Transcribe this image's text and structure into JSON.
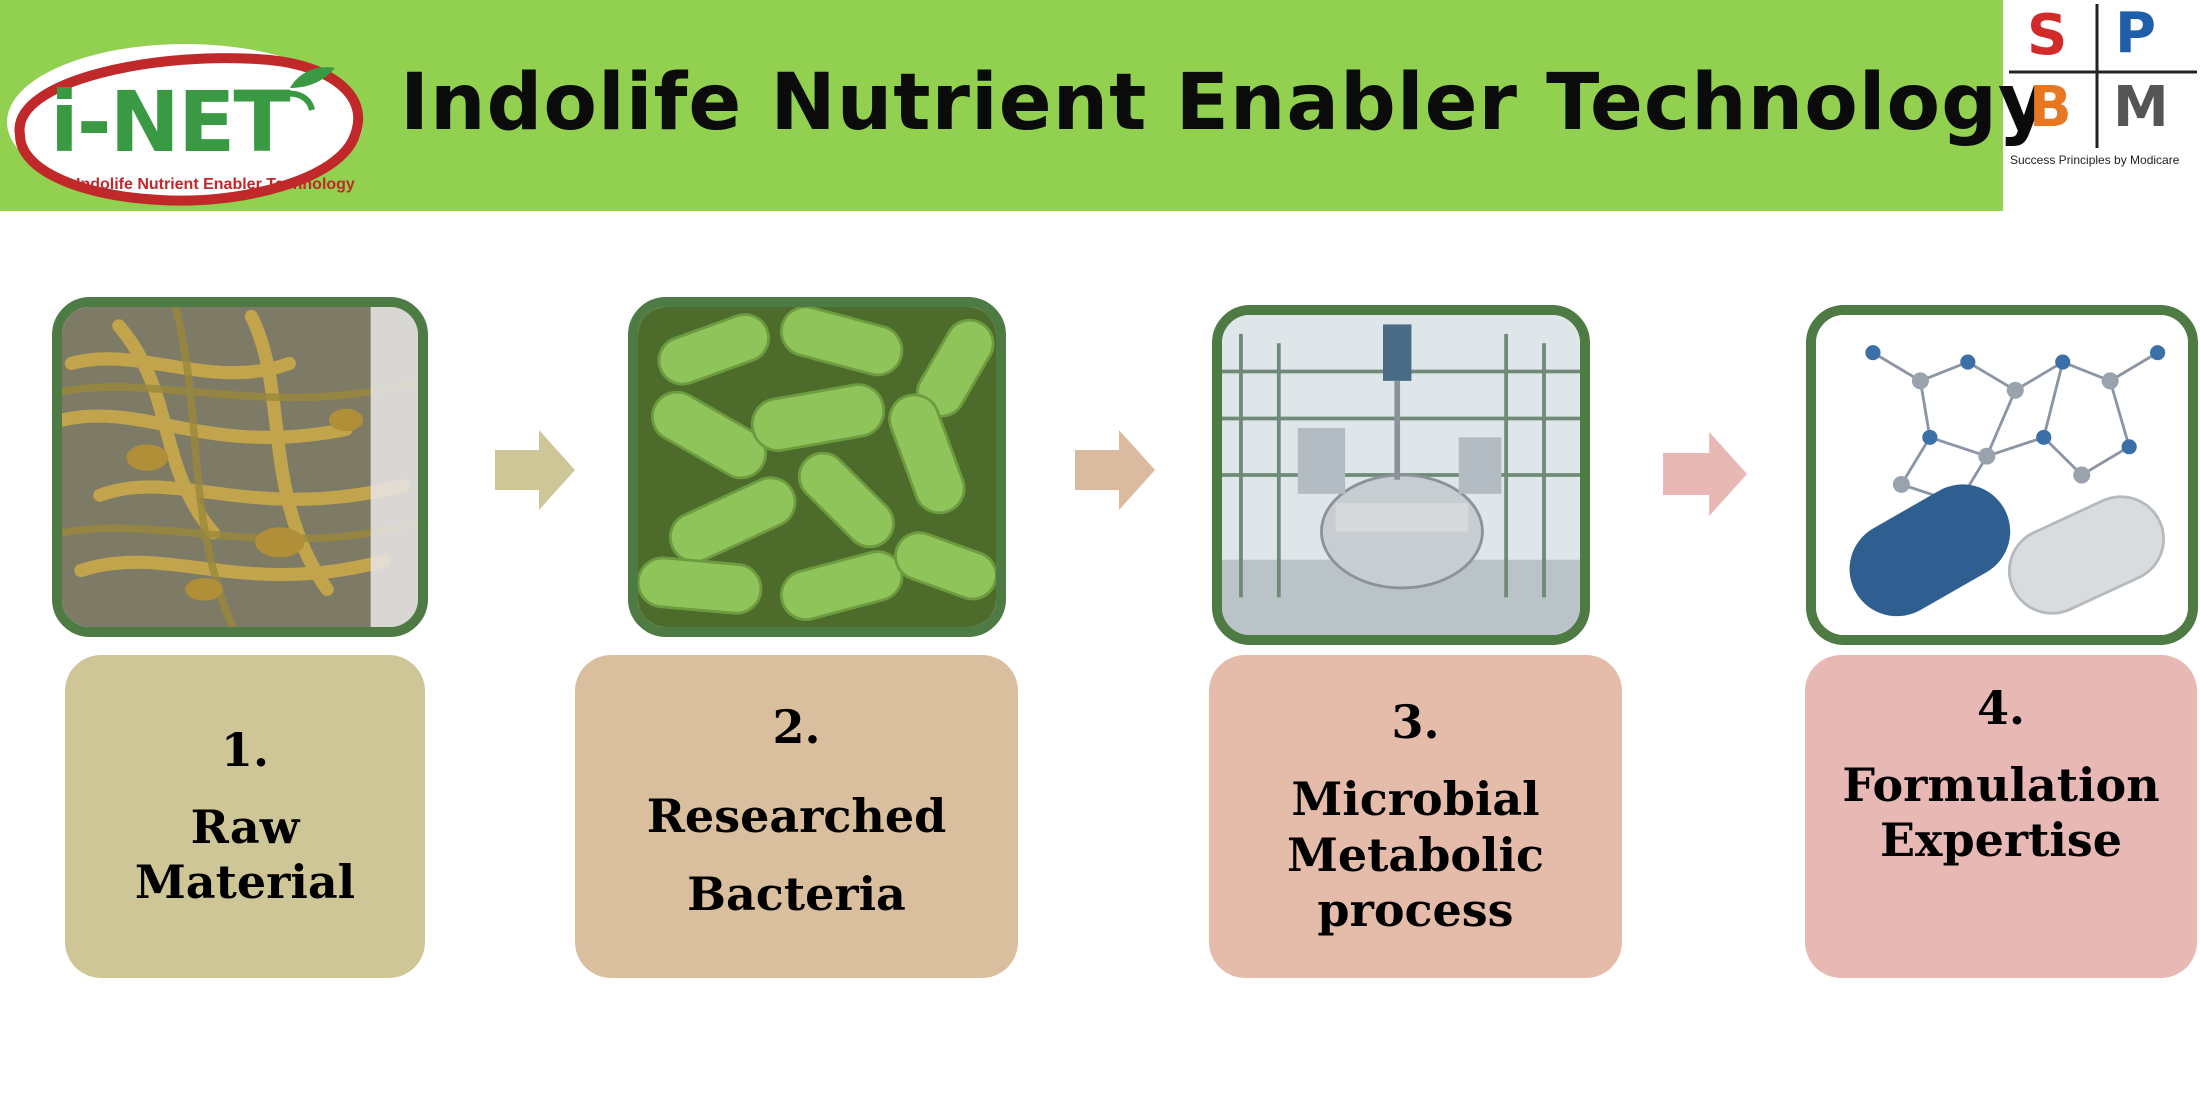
{
  "header": {
    "title": "Indolife Nutrient Enabler Technology",
    "logo_text": "i-NET",
    "logo_subtitle": "Indolife Nutrient Enabler Technology",
    "bg_color": "#92d050"
  },
  "brand": {
    "letters": [
      "S",
      "P",
      "B",
      "M"
    ],
    "tagline": "Success Principles by Modicare"
  },
  "steps": [
    {
      "number": "1.",
      "label": "Raw Material",
      "image": "seaweed",
      "box_color": "#cfc698"
    },
    {
      "number": "2.",
      "label": "Researched Bacteria",
      "image": "bacteria",
      "box_color": "#d9bf9e"
    },
    {
      "number": "3.",
      "label": "Microbial Metabolic process",
      "image": "bioreactor-plant",
      "box_color": "#e5bcaa"
    },
    {
      "number": "4.",
      "label": "Formulation Expertise",
      "image": "molecule-capsule",
      "box_color": "#e8b8b5"
    }
  ],
  "colors": {
    "frame": "#4e7a43",
    "arrow1": "#cfc698",
    "arrow2": "#dbbba0",
    "arrow3": "#e8b8b5"
  }
}
